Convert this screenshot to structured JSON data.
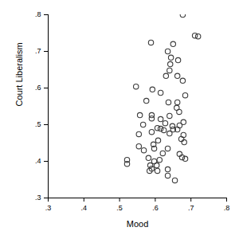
{
  "chart_data": {
    "type": "scatter",
    "x_label": "Mood",
    "y_label": "Court Liberalism",
    "marker": "circle-open",
    "color": "#3c3c3c",
    "xlim": [
      0.3,
      0.8
    ],
    "ylim": [
      0.3,
      0.8
    ],
    "xticks": [
      {
        "value": 0.3,
        "label": ".3"
      },
      {
        "value": 0.4,
        "label": ".4"
      },
      {
        "value": 0.5,
        "label": ".5"
      },
      {
        "value": 0.6,
        "label": ".6"
      },
      {
        "value": 0.7,
        "label": ".7"
      },
      {
        "value": 0.8,
        "label": ".8"
      }
    ],
    "yticks": [
      {
        "value": 0.3,
        "label": ".3"
      },
      {
        "value": 0.4,
        "label": ".4"
      },
      {
        "value": 0.5,
        "label": ".5"
      },
      {
        "value": 0.6,
        "label": ".6"
      },
      {
        "value": 0.7,
        "label": ".7"
      },
      {
        "value": 0.8,
        "label": ".8"
      }
    ],
    "x": [
      0.677,
      0.711,
      0.72,
      0.588,
      0.65,
      0.635,
      0.664,
      0.644,
      0.642,
      0.64,
      0.63,
      0.662,
      0.677,
      0.684,
      0.546,
      0.592,
      0.615,
      0.575,
      0.637,
      0.662,
      0.66,
      0.667,
      0.64,
      0.557,
      0.59,
      0.615,
      0.59,
      0.566,
      0.628,
      0.606,
      0.679,
      0.668,
      0.648,
      0.615,
      0.624,
      0.65,
      0.662,
      0.554,
      0.59,
      0.64,
      0.679,
      0.673,
      0.681,
      0.608,
      0.595,
      0.554,
      0.597,
      0.635,
      0.568,
      0.621,
      0.668,
      0.675,
      0.684,
      0.581,
      0.597,
      0.612,
      0.586,
      0.604,
      0.59,
      0.606,
      0.584,
      0.635,
      0.635,
      0.655,
      0.521,
      0.521
    ],
    "values": [
      0.8,
      0.743,
      0.741,
      0.724,
      0.72,
      0.7,
      0.676,
      0.683,
      0.665,
      0.648,
      0.633,
      0.633,
      0.62,
      0.58,
      0.604,
      0.596,
      0.587,
      0.565,
      0.561,
      0.561,
      0.546,
      0.535,
      0.524,
      0.526,
      0.526,
      0.515,
      0.517,
      0.5,
      0.504,
      0.491,
      0.507,
      0.498,
      0.496,
      0.489,
      0.485,
      0.487,
      0.487,
      0.474,
      0.48,
      0.476,
      0.472,
      0.461,
      0.452,
      0.457,
      0.446,
      0.441,
      0.435,
      0.435,
      0.43,
      0.422,
      0.42,
      0.411,
      0.407,
      0.409,
      0.4,
      0.404,
      0.389,
      0.389,
      0.38,
      0.374,
      0.374,
      0.378,
      0.361,
      0.348,
      0.404,
      0.393
    ]
  }
}
